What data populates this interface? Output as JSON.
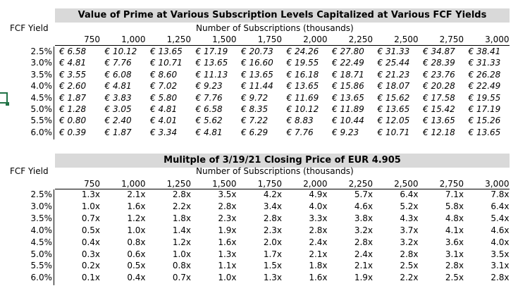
{
  "table1": {
    "title": "Value of Prime at Various Subscription Levels Capitalized at Various FCF Yields",
    "row_header": "FCF Yield",
    "column_header": "Number of Subscriptions (thousands)",
    "columns": [
      "750",
      "1,000",
      "1,250",
      "1,500",
      "1,750",
      "2,000",
      "2,250",
      "2,500",
      "2,750",
      "3,000"
    ],
    "rows": [
      {
        "label": "2.5%",
        "cells": [
          "€ 6.58",
          "€ 10.12",
          "€ 13.65",
          "€ 17.19",
          "€ 20.73",
          "€ 24.26",
          "€ 27.80",
          "€ 31.33",
          "€ 34.87",
          "€ 38.41"
        ]
      },
      {
        "label": "3.0%",
        "cells": [
          "€ 4.81",
          "€ 7.76",
          "€ 10.71",
          "€ 13.65",
          "€ 16.60",
          "€ 19.55",
          "€ 22.49",
          "€ 25.44",
          "€ 28.39",
          "€ 31.33"
        ]
      },
      {
        "label": "3.5%",
        "cells": [
          "€ 3.55",
          "€ 6.08",
          "€ 8.60",
          "€ 11.13",
          "€ 13.65",
          "€ 16.18",
          "€ 18.71",
          "€ 21.23",
          "€ 23.76",
          "€ 26.28"
        ]
      },
      {
        "label": "4.0%",
        "cells": [
          "€ 2.60",
          "€ 4.81",
          "€ 7.02",
          "€ 9.23",
          "€ 11.44",
          "€ 13.65",
          "€ 15.86",
          "€ 18.07",
          "€ 20.28",
          "€ 22.49"
        ]
      },
      {
        "label": "4.5%",
        "cells": [
          "€ 1.87",
          "€ 3.83",
          "€ 5.80",
          "€ 7.76",
          "€ 9.72",
          "€ 11.69",
          "€ 13.65",
          "€ 15.62",
          "€ 17.58",
          "€ 19.55"
        ]
      },
      {
        "label": "5.0%",
        "cells": [
          "€ 1.28",
          "€ 3.05",
          "€ 4.81",
          "€ 6.58",
          "€ 8.35",
          "€ 10.12",
          "€ 11.89",
          "€ 13.65",
          "€ 15.42",
          "€ 17.19"
        ]
      },
      {
        "label": "5.5%",
        "cells": [
          "€ 0.80",
          "€ 2.40",
          "€ 4.01",
          "€ 5.62",
          "€ 7.22",
          "€ 8.83",
          "€ 10.44",
          "€ 12.05",
          "€ 13.65",
          "€ 15.26"
        ]
      },
      {
        "label": "6.0%",
        "cells": [
          "€ 0.39",
          "€ 1.87",
          "€ 3.34",
          "€ 4.81",
          "€ 6.29",
          "€ 7.76",
          "€ 9.23",
          "€ 10.71",
          "€ 12.18",
          "€ 13.65"
        ]
      }
    ]
  },
  "table2": {
    "title": "Mulitple of 3/19/21 Closing Price of EUR 4.905",
    "row_header": "FCF Yield",
    "column_header": "Number of Subscriptions (thousands)",
    "columns": [
      "750",
      "1,000",
      "1,250",
      "1,500",
      "1,750",
      "2,000",
      "2,250",
      "2,500",
      "2,750",
      "3,000"
    ],
    "rows": [
      {
        "label": "2.5%",
        "cells": [
          "1.3x",
          "2.1x",
          "2.8x",
          "3.5x",
          "4.2x",
          "4.9x",
          "5.7x",
          "6.4x",
          "7.1x",
          "7.8x"
        ]
      },
      {
        "label": "3.0%",
        "cells": [
          "1.0x",
          "1.6x",
          "2.2x",
          "2.8x",
          "3.4x",
          "4.0x",
          "4.6x",
          "5.2x",
          "5.8x",
          "6.4x"
        ]
      },
      {
        "label": "3.5%",
        "cells": [
          "0.7x",
          "1.2x",
          "1.8x",
          "2.3x",
          "2.8x",
          "3.3x",
          "3.8x",
          "4.3x",
          "4.8x",
          "5.4x"
        ]
      },
      {
        "label": "4.0%",
        "cells": [
          "0.5x",
          "1.0x",
          "1.4x",
          "1.9x",
          "2.3x",
          "2.8x",
          "3.2x",
          "3.7x",
          "4.1x",
          "4.6x"
        ]
      },
      {
        "label": "4.5%",
        "cells": [
          "0.4x",
          "0.8x",
          "1.2x",
          "1.6x",
          "2.0x",
          "2.4x",
          "2.8x",
          "3.2x",
          "3.6x",
          "4.0x"
        ]
      },
      {
        "label": "5.0%",
        "cells": [
          "0.3x",
          "0.6x",
          "1.0x",
          "1.3x",
          "1.7x",
          "2.1x",
          "2.4x",
          "2.8x",
          "3.1x",
          "3.5x"
        ]
      },
      {
        "label": "5.5%",
        "cells": [
          "0.2x",
          "0.5x",
          "0.8x",
          "1.1x",
          "1.5x",
          "1.8x",
          "2.1x",
          "2.5x",
          "2.8x",
          "3.1x"
        ]
      },
      {
        "label": "6.0%",
        "cells": [
          "0.1x",
          "0.4x",
          "0.7x",
          "1.0x",
          "1.3x",
          "1.6x",
          "1.9x",
          "2.2x",
          "2.5x",
          "2.8x"
        ]
      }
    ]
  },
  "colors": {
    "title_fill": "#d9d9d9",
    "selection_border": "#217346"
  }
}
